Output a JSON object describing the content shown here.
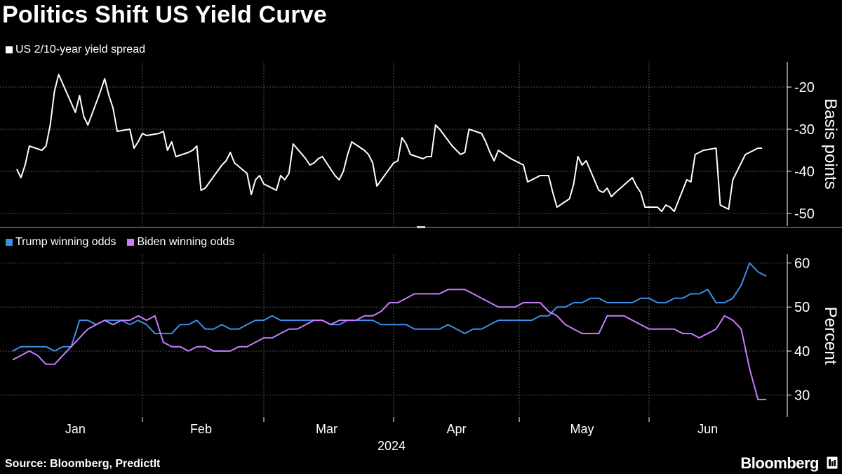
{
  "title": "Politics Shift US Yield Curve",
  "source": "Source: Bloomberg, PredictIt",
  "brand": "Bloomberg",
  "colors": {
    "spread": "#ffffff",
    "trump": "#3d8fe8",
    "biden": "#c77dff",
    "grid": "#555555",
    "background": "#000000"
  },
  "chart_data": [
    {
      "type": "line",
      "series": [
        {
          "name": "US 2/10-year yield spread",
          "x": [
            "2024-01-02",
            "2024-01-03",
            "2024-01-04",
            "2024-01-05",
            "2024-01-08",
            "2024-01-09",
            "2024-01-10",
            "2024-01-11",
            "2024-01-12",
            "2024-01-16",
            "2024-01-17",
            "2024-01-18",
            "2024-01-19",
            "2024-01-22",
            "2024-01-23",
            "2024-01-24",
            "2024-01-25",
            "2024-01-26",
            "2024-01-29",
            "2024-01-30",
            "2024-01-31",
            "2024-02-01",
            "2024-02-02",
            "2024-02-05",
            "2024-02-06",
            "2024-02-07",
            "2024-02-08",
            "2024-02-09",
            "2024-02-12",
            "2024-02-13",
            "2024-02-14",
            "2024-02-15",
            "2024-02-16",
            "2024-02-20",
            "2024-02-21",
            "2024-02-22",
            "2024-02-23",
            "2024-02-26",
            "2024-02-27",
            "2024-02-28",
            "2024-02-29",
            "2024-03-01",
            "2024-03-04",
            "2024-03-05",
            "2024-03-06",
            "2024-03-07",
            "2024-03-08",
            "2024-03-11",
            "2024-03-12",
            "2024-03-13",
            "2024-03-14",
            "2024-03-15",
            "2024-03-18",
            "2024-03-19",
            "2024-03-20",
            "2024-03-21",
            "2024-03-22",
            "2024-03-25",
            "2024-03-26",
            "2024-03-27",
            "2024-03-28",
            "2024-04-01",
            "2024-04-02",
            "2024-04-03",
            "2024-04-04",
            "2024-04-05",
            "2024-04-08",
            "2024-04-09",
            "2024-04-10",
            "2024-04-11",
            "2024-04-12",
            "2024-04-15",
            "2024-04-16",
            "2024-04-17",
            "2024-04-18",
            "2024-04-19",
            "2024-04-22",
            "2024-04-23",
            "2024-04-24",
            "2024-04-25",
            "2024-04-26",
            "2024-04-29",
            "2024-04-30",
            "2024-05-01",
            "2024-05-02",
            "2024-05-03",
            "2024-05-06",
            "2024-05-07",
            "2024-05-08",
            "2024-05-09",
            "2024-05-10",
            "2024-05-13",
            "2024-05-14",
            "2024-05-15",
            "2024-05-16",
            "2024-05-17",
            "2024-05-20",
            "2024-05-21",
            "2024-05-22",
            "2024-05-23",
            "2024-05-24",
            "2024-05-28",
            "2024-05-29",
            "2024-05-30",
            "2024-05-31",
            "2024-06-03",
            "2024-06-04",
            "2024-06-05",
            "2024-06-06",
            "2024-06-07",
            "2024-06-10",
            "2024-06-11",
            "2024-06-12",
            "2024-06-13",
            "2024-06-14",
            "2024-06-17",
            "2024-06-18",
            "2024-06-20",
            "2024-06-21",
            "2024-06-24",
            "2024-06-25",
            "2024-06-26",
            "2024-06-27",
            "2024-06-28"
          ],
          "values": [
            -39.5,
            -41.5,
            -38.5,
            -34,
            -35,
            -34,
            -29,
            -21,
            -17,
            -26,
            -22,
            -27,
            -29,
            -21,
            -18,
            -22,
            -25,
            -30.5,
            -30,
            -34.5,
            -33,
            -31,
            -31.5,
            -31,
            -30.5,
            -35,
            -33,
            -36.5,
            -35.5,
            -35,
            -34,
            -44.5,
            -44,
            -38.5,
            -37.5,
            -35.5,
            -38,
            -40.5,
            -45.5,
            -42,
            -41,
            -43,
            -44.5,
            -41,
            -42,
            -40.5,
            -33.5,
            -37,
            -38.5,
            -38,
            -37,
            -36.5,
            -41,
            -42,
            -40,
            -36,
            -33,
            -35,
            -36,
            -38,
            -43.5,
            -38,
            -37.5,
            -32,
            -33.5,
            -36,
            -37,
            -36.5,
            -36.5,
            -29,
            -30,
            -34,
            -35,
            -36,
            -35.5,
            -30,
            -31,
            -33,
            -35.5,
            -37.5,
            -35,
            -37,
            -37.5,
            -38,
            -38.5,
            -42.5,
            -41,
            -41,
            -41,
            -45,
            -48.5,
            -46.5,
            -43,
            -36.5,
            -38.5,
            -37.5,
            -44.5,
            -45,
            -44,
            -46,
            -45,
            -41.5,
            -43.5,
            -45,
            -48.5,
            -48.5,
            -49.5,
            -48,
            -48.5,
            -49.5,
            -42,
            -42.5,
            -36,
            -35.5,
            -35,
            -34.5,
            -48,
            -49,
            -42,
            -36,
            -35.5,
            -35,
            -34.5,
            -34.5
          ],
          "color": "#ffffff"
        }
      ],
      "xlim": [
        "2023-12-29",
        "2024-07-04"
      ],
      "ylabel": "Basis points",
      "ylim": [
        -53,
        -14
      ],
      "yticks": [
        -20,
        -30,
        -40,
        -50
      ],
      "ytick_labels": [
        "-20",
        "-30",
        "-40",
        "-50"
      ],
      "grid": true,
      "legend": "top-left"
    },
    {
      "type": "line",
      "series": [
        {
          "name": "Trump winning odds",
          "x": [
            "2024-01-01",
            "2024-01-03",
            "2024-01-05",
            "2024-01-07",
            "2024-01-09",
            "2024-01-11",
            "2024-01-13",
            "2024-01-15",
            "2024-01-17",
            "2024-01-19",
            "2024-01-21",
            "2024-01-23",
            "2024-01-25",
            "2024-01-27",
            "2024-01-29",
            "2024-01-31",
            "2024-02-02",
            "2024-02-04",
            "2024-02-06",
            "2024-02-08",
            "2024-02-10",
            "2024-02-12",
            "2024-02-14",
            "2024-02-16",
            "2024-02-18",
            "2024-02-20",
            "2024-02-22",
            "2024-02-24",
            "2024-02-26",
            "2024-02-28",
            "2024-03-01",
            "2024-03-03",
            "2024-03-05",
            "2024-03-07",
            "2024-03-09",
            "2024-03-11",
            "2024-03-13",
            "2024-03-15",
            "2024-03-17",
            "2024-03-19",
            "2024-03-21",
            "2024-03-23",
            "2024-03-25",
            "2024-03-27",
            "2024-03-29",
            "2024-03-31",
            "2024-04-02",
            "2024-04-04",
            "2024-04-06",
            "2024-04-08",
            "2024-04-10",
            "2024-04-12",
            "2024-04-14",
            "2024-04-16",
            "2024-04-18",
            "2024-04-20",
            "2024-04-22",
            "2024-04-24",
            "2024-04-26",
            "2024-04-28",
            "2024-04-30",
            "2024-05-02",
            "2024-05-04",
            "2024-05-06",
            "2024-05-08",
            "2024-05-10",
            "2024-05-12",
            "2024-05-14",
            "2024-05-16",
            "2024-05-18",
            "2024-05-20",
            "2024-05-22",
            "2024-05-24",
            "2024-05-26",
            "2024-05-28",
            "2024-05-30",
            "2024-06-01",
            "2024-06-03",
            "2024-06-05",
            "2024-06-07",
            "2024-06-09",
            "2024-06-11",
            "2024-06-13",
            "2024-06-15",
            "2024-06-17",
            "2024-06-19",
            "2024-06-21",
            "2024-06-23",
            "2024-06-25",
            "2024-06-27",
            "2024-06-29"
          ],
          "values": [
            40,
            41,
            41,
            41,
            41,
            40,
            41,
            41,
            47,
            47,
            46,
            47,
            47,
            47,
            46,
            47,
            46,
            44,
            44,
            44,
            46,
            46,
            47,
            45,
            45,
            46,
            45,
            45,
            46,
            47,
            47,
            48,
            47,
            47,
            47,
            47,
            47,
            47,
            46,
            46,
            47,
            47,
            47,
            47,
            46,
            46,
            46,
            46,
            45,
            45,
            45,
            45,
            46,
            45,
            44,
            45,
            45,
            46,
            47,
            47,
            47,
            47,
            47,
            48,
            48,
            50,
            50,
            51,
            51,
            52,
            52,
            51,
            51,
            51,
            51,
            52,
            52,
            51,
            51,
            52,
            52,
            53,
            53,
            54,
            51,
            51,
            52,
            55,
            60,
            58,
            57
          ],
          "color": "#3d8fe8"
        },
        {
          "name": "Biden winning odds",
          "x": [
            "2024-01-01",
            "2024-01-03",
            "2024-01-05",
            "2024-01-07",
            "2024-01-09",
            "2024-01-11",
            "2024-01-13",
            "2024-01-15",
            "2024-01-17",
            "2024-01-19",
            "2024-01-21",
            "2024-01-23",
            "2024-01-25",
            "2024-01-27",
            "2024-01-29",
            "2024-01-31",
            "2024-02-02",
            "2024-02-04",
            "2024-02-06",
            "2024-02-08",
            "2024-02-10",
            "2024-02-12",
            "2024-02-14",
            "2024-02-16",
            "2024-02-18",
            "2024-02-20",
            "2024-02-22",
            "2024-02-24",
            "2024-02-26",
            "2024-02-28",
            "2024-03-01",
            "2024-03-03",
            "2024-03-05",
            "2024-03-07",
            "2024-03-09",
            "2024-03-11",
            "2024-03-13",
            "2024-03-15",
            "2024-03-17",
            "2024-03-19",
            "2024-03-21",
            "2024-03-23",
            "2024-03-25",
            "2024-03-27",
            "2024-03-29",
            "2024-03-31",
            "2024-04-02",
            "2024-04-04",
            "2024-04-06",
            "2024-04-08",
            "2024-04-10",
            "2024-04-12",
            "2024-04-14",
            "2024-04-16",
            "2024-04-18",
            "2024-04-20",
            "2024-04-22",
            "2024-04-24",
            "2024-04-26",
            "2024-04-28",
            "2024-04-30",
            "2024-05-02",
            "2024-05-04",
            "2024-05-06",
            "2024-05-08",
            "2024-05-10",
            "2024-05-12",
            "2024-05-14",
            "2024-05-16",
            "2024-05-18",
            "2024-05-20",
            "2024-05-22",
            "2024-05-24",
            "2024-05-26",
            "2024-05-28",
            "2024-05-30",
            "2024-06-01",
            "2024-06-03",
            "2024-06-05",
            "2024-06-07",
            "2024-06-09",
            "2024-06-11",
            "2024-06-13",
            "2024-06-15",
            "2024-06-17",
            "2024-06-19",
            "2024-06-21",
            "2024-06-23",
            "2024-06-25",
            "2024-06-27",
            "2024-06-29"
          ],
          "values": [
            38,
            39,
            40,
            39,
            37,
            37,
            39,
            41,
            43,
            45,
            46,
            47,
            46,
            47,
            47,
            48,
            47,
            48,
            42,
            41,
            41,
            40,
            41,
            41,
            40,
            40,
            40,
            41,
            41,
            42,
            43,
            43,
            44,
            45,
            45,
            46,
            47,
            47,
            46,
            47,
            47,
            47,
            48,
            48,
            49,
            51,
            51,
            52,
            53,
            53,
            53,
            53,
            54,
            54,
            54,
            53,
            52,
            51,
            50,
            50,
            50,
            51,
            51,
            51,
            49,
            48,
            46,
            45,
            44,
            44,
            44,
            48,
            48,
            48,
            47,
            46,
            45,
            45,
            45,
            45,
            44,
            44,
            43,
            44,
            45,
            48,
            47,
            45,
            36,
            29,
            29
          ],
          "color": "#c77dff"
        }
      ],
      "xlim": [
        "2023-12-29",
        "2024-07-04"
      ],
      "x_tick_labels": [
        "Jan",
        "Feb",
        "Mar",
        "Apr",
        "May",
        "Jun"
      ],
      "x_year_label": "2024",
      "ylabel": "Percent",
      "ylim": [
        25,
        62
      ],
      "yticks": [
        30,
        40,
        50,
        60
      ],
      "ytick_labels": [
        "30",
        "40",
        "50",
        "60"
      ],
      "grid": true,
      "legend": "top-left"
    }
  ]
}
